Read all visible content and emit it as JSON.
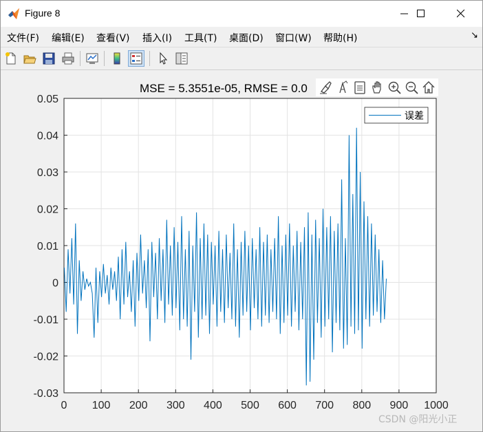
{
  "window": {
    "title": "Figure 8"
  },
  "menu": [
    "文件(F)",
    "编辑(E)",
    "查看(V)",
    "插入(I)",
    "工具(T)",
    "桌面(D)",
    "窗口(W)",
    "帮助(H)"
  ],
  "toolbar": [
    "new-figure-icon",
    "open-file-icon",
    "save-icon",
    "print-icon",
    "link-plot-icon",
    "insert-colorbar-icon",
    "insert-legend-icon",
    "edit-plot-arrow-icon",
    "property-inspector-icon"
  ],
  "axes_toolbar": [
    "brush-icon",
    "data-tips-icon",
    "restore-view-icon",
    "pan-icon",
    "zoom-in-icon",
    "zoom-out-icon",
    "home-icon"
  ],
  "watermark": "CSDN @阳光小正",
  "chart_data": {
    "type": "line",
    "title": "MSE = 5.3551e-05, RMSE = 0.0",
    "xlabel": "",
    "ylabel": "",
    "xlim": [
      0,
      1000
    ],
    "ylim": [
      -0.03,
      0.05
    ],
    "xticks": [
      "0",
      "100",
      "200",
      "300",
      "400",
      "500",
      "600",
      "700",
      "800",
      "900",
      "1000"
    ],
    "yticks": [
      "-0.03",
      "-0.02",
      "-0.01",
      "0",
      "0.01",
      "0.02",
      "0.03",
      "0.04",
      "0.05"
    ],
    "grid": true,
    "legend_position": "top-right",
    "line_color": "#0072BD",
    "series": [
      {
        "name": "误差",
        "x_start": 1,
        "x_step": 5,
        "values": [
          0.004,
          -0.008,
          0.009,
          -0.003,
          0.012,
          -0.006,
          0.016,
          -0.014,
          0.006,
          -0.005,
          0.003,
          -0.002,
          0.001,
          -0.001,
          0.0,
          -0.003,
          -0.015,
          0.004,
          -0.011,
          0.003,
          -0.004,
          0.005,
          -0.003,
          0.002,
          -0.006,
          0.004,
          -0.002,
          0.003,
          -0.005,
          0.007,
          -0.01,
          0.009,
          -0.006,
          0.011,
          -0.004,
          0.003,
          -0.008,
          0.006,
          -0.012,
          0.008,
          -0.005,
          0.013,
          -0.003,
          0.006,
          -0.007,
          0.009,
          -0.016,
          0.011,
          -0.004,
          0.008,
          -0.01,
          0.012,
          -0.005,
          0.009,
          -0.011,
          0.017,
          -0.006,
          0.01,
          -0.009,
          0.015,
          -0.007,
          0.011,
          -0.013,
          0.018,
          -0.01,
          0.009,
          -0.012,
          0.014,
          -0.021,
          0.01,
          -0.008,
          0.019,
          -0.015,
          0.012,
          -0.01,
          0.016,
          -0.009,
          0.013,
          -0.014,
          0.011,
          -0.006,
          0.01,
          -0.012,
          0.014,
          -0.008,
          0.009,
          -0.011,
          0.013,
          -0.007,
          0.008,
          -0.01,
          0.016,
          -0.012,
          0.009,
          -0.015,
          0.011,
          -0.009,
          0.014,
          -0.008,
          0.01,
          -0.013,
          0.012,
          -0.007,
          0.009,
          -0.01,
          0.015,
          -0.012,
          0.011,
          -0.009,
          0.013,
          -0.011,
          0.009,
          -0.008,
          0.012,
          -0.01,
          0.018,
          -0.014,
          0.01,
          -0.011,
          0.013,
          -0.009,
          0.016,
          -0.012,
          0.01,
          -0.008,
          0.014,
          -0.013,
          0.011,
          -0.01,
          0.015,
          -0.028,
          0.019,
          -0.027,
          0.013,
          -0.021,
          0.017,
          -0.011,
          0.012,
          -0.015,
          0.02,
          -0.012,
          0.015,
          -0.01,
          0.018,
          -0.019,
          0.014,
          -0.011,
          0.016,
          -0.013,
          0.028,
          -0.018,
          0.012,
          -0.017,
          0.04,
          -0.012,
          0.024,
          -0.014,
          0.042,
          -0.013,
          0.03,
          -0.018,
          0.022,
          -0.01,
          0.018,
          -0.012,
          0.016,
          -0.009,
          0.013,
          -0.008,
          0.009,
          -0.011,
          0.006,
          -0.01,
          0.001
        ]
      }
    ]
  }
}
